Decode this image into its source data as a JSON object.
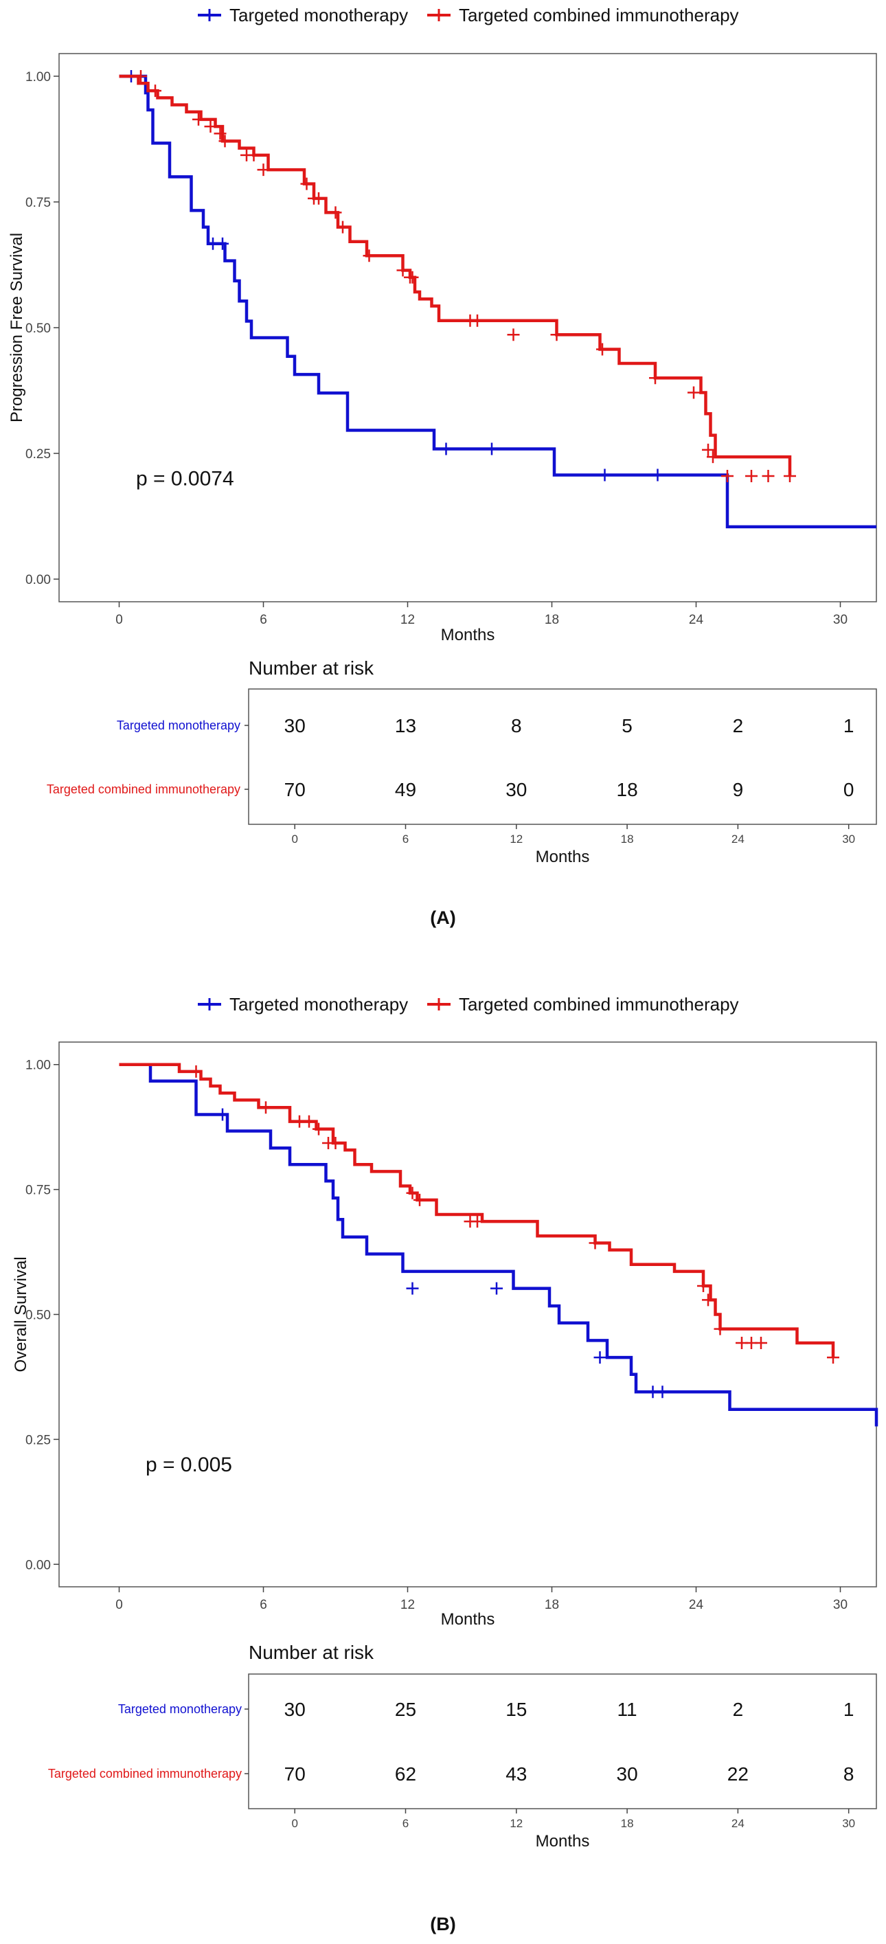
{
  "chart_data": [
    {
      "type": "line",
      "subtype": "kaplan-meier",
      "panel_label": "(A)",
      "ylabel": "Progression Free Survival",
      "xlabel": "Months",
      "xlim": [
        -2.5,
        31.5
      ],
      "ylim": [
        -0.045,
        1.045
      ],
      "x_ticks": [
        0,
        6,
        12,
        18,
        24,
        30
      ],
      "y_ticks": [
        0,
        0.25,
        0.5,
        0.75,
        1.0
      ],
      "y_tick_labels": [
        "0.00",
        "0.25",
        "0.50",
        "0.75",
        "1.00"
      ],
      "pvalue": "p = 0.0074",
      "pvalue_pos": [
        0.7,
        0.2
      ],
      "legend": [
        "Targeted monotherapy",
        "Targeted combined immunotherapy"
      ],
      "series": [
        {
          "name": "Targeted monotherapy",
          "color": "#1010d0",
          "x": [
            0,
            0.9,
            1.1,
            1.2,
            1.4,
            2.1,
            3.0,
            3.5,
            3.7,
            4.4,
            4.8,
            5.0,
            5.3,
            5.5,
            7.0,
            7.3,
            8.3,
            9.5,
            13.1,
            18.1,
            25.3,
            31.5
          ],
          "y": [
            1.0,
            1.0,
            0.967,
            0.933,
            0.867,
            0.8,
            0.733,
            0.7,
            0.667,
            0.633,
            0.593,
            0.553,
            0.513,
            0.48,
            0.443,
            0.407,
            0.37,
            0.296,
            0.259,
            0.207,
            0.104,
            0.104
          ],
          "censor_x": [
            0.5,
            3.9,
            4.3,
            13.6,
            15.5,
            20.2,
            22.4
          ],
          "censor_y": [
            1.0,
            0.667,
            0.667,
            0.259,
            0.259,
            0.207,
            0.207
          ]
        },
        {
          "name": "Targeted combined immunotherapy",
          "color": "#e01818",
          "x": [
            0,
            0.8,
            1.2,
            1.6,
            2.2,
            2.8,
            3.4,
            4.0,
            4.3,
            5.0,
            5.6,
            6.2,
            7.7,
            8.1,
            8.6,
            9.1,
            9.6,
            10.3,
            11.8,
            12.1,
            12.3,
            12.5,
            13.0,
            13.3,
            18.2,
            20.0,
            20.8,
            22.3,
            24.2,
            24.4,
            24.6,
            24.8,
            27.9
          ],
          "y": [
            1.0,
            0.986,
            0.971,
            0.957,
            0.943,
            0.929,
            0.914,
            0.9,
            0.871,
            0.857,
            0.843,
            0.814,
            0.786,
            0.757,
            0.729,
            0.7,
            0.671,
            0.643,
            0.614,
            0.6,
            0.571,
            0.557,
            0.543,
            0.514,
            0.486,
            0.457,
            0.429,
            0.4,
            0.371,
            0.329,
            0.286,
            0.243,
            0.205
          ],
          "censor_x": [
            0.9,
            1.5,
            3.3,
            3.8,
            4.2,
            4.4,
            5.3,
            5.6,
            6.0,
            7.8,
            8.1,
            8.3,
            9.0,
            9.3,
            10.4,
            11.8,
            12.1,
            12.2,
            14.6,
            14.9,
            16.4,
            18.2,
            20.1,
            22.3,
            23.9,
            24.5,
            24.7,
            25.3,
            26.3,
            27.0,
            27.9
          ],
          "censor_y": [
            1.0,
            0.971,
            0.914,
            0.9,
            0.886,
            0.871,
            0.843,
            0.843,
            0.814,
            0.786,
            0.757,
            0.757,
            0.729,
            0.7,
            0.643,
            0.614,
            0.6,
            0.6,
            0.514,
            0.514,
            0.486,
            0.486,
            0.457,
            0.4,
            0.371,
            0.257,
            0.243,
            0.205,
            0.205,
            0.205,
            0.205
          ]
        }
      ],
      "risk_table": {
        "title": "Number at risk",
        "xlabel": "Months",
        "x_ticks": [
          0,
          6,
          12,
          18,
          24,
          30
        ],
        "rows": [
          {
            "name": "Targeted monotherapy",
            "color": "#1010d0",
            "values": [
              "30",
              "13",
              "8",
              "5",
              "2",
              "1"
            ]
          },
          {
            "name": "Targeted combined immunotherapy",
            "color": "#e01818",
            "values": [
              "70",
              "49",
              "30",
              "18",
              "9",
              "0"
            ]
          }
        ]
      }
    },
    {
      "type": "line",
      "subtype": "kaplan-meier",
      "panel_label": "(B)",
      "ylabel": "Overall Survival",
      "xlabel": "Months",
      "xlim": [
        -2.5,
        31.5
      ],
      "ylim": [
        -0.045,
        1.045
      ],
      "x_ticks": [
        0,
        6,
        12,
        18,
        24,
        30
      ],
      "y_ticks": [
        0,
        0.25,
        0.5,
        0.75,
        1.0
      ],
      "y_tick_labels": [
        "0.00",
        "0.25",
        "0.50",
        "0.75",
        "1.00"
      ],
      "pvalue": "p = 0.005",
      "pvalue_pos": [
        1.1,
        0.2
      ],
      "legend": [
        "Targeted monotherapy",
        "Targeted combined immunotherapy"
      ],
      "series": [
        {
          "name": "Targeted monotherapy",
          "color": "#1010d0",
          "x": [
            0,
            1.3,
            3.2,
            4.5,
            6.3,
            7.1,
            8.6,
            8.9,
            9.1,
            9.3,
            10.3,
            11.8,
            16.4,
            17.9,
            18.3,
            19.5,
            20.3,
            21.3,
            21.5,
            25.4,
            31.5
          ],
          "y": [
            1.0,
            0.967,
            0.9,
            0.867,
            0.833,
            0.8,
            0.767,
            0.733,
            0.69,
            0.655,
            0.621,
            0.586,
            0.552,
            0.517,
            0.483,
            0.448,
            0.414,
            0.38,
            0.345,
            0.31,
            0.276
          ],
          "censor_x": [
            4.3,
            12.2,
            15.7,
            20.0,
            22.2,
            22.6
          ],
          "censor_y": [
            0.9,
            0.552,
            0.552,
            0.414,
            0.345,
            0.345
          ]
        },
        {
          "name": "Targeted combined immunotherapy",
          "color": "#e01818",
          "x": [
            0,
            2.5,
            3.4,
            3.8,
            4.2,
            4.8,
            5.8,
            7.1,
            8.2,
            8.9,
            9.4,
            9.8,
            10.5,
            11.7,
            12.1,
            12.4,
            13.2,
            15.1,
            17.4,
            19.8,
            20.4,
            21.3,
            23.1,
            24.3,
            24.6,
            24.8,
            25.0,
            28.2,
            29.7
          ],
          "y": [
            1.0,
            0.986,
            0.971,
            0.957,
            0.943,
            0.929,
            0.914,
            0.886,
            0.871,
            0.843,
            0.829,
            0.8,
            0.786,
            0.757,
            0.743,
            0.729,
            0.7,
            0.686,
            0.657,
            0.643,
            0.629,
            0.6,
            0.586,
            0.557,
            0.529,
            0.5,
            0.471,
            0.443,
            0.414
          ],
          "censor_x": [
            3.2,
            6.1,
            7.5,
            7.9,
            8.3,
            8.7,
            9.0,
            12.2,
            12.5,
            14.6,
            14.9,
            19.8,
            24.3,
            24.5,
            25.0,
            25.9,
            26.3,
            26.7,
            29.7
          ],
          "censor_y": [
            0.986,
            0.914,
            0.886,
            0.886,
            0.871,
            0.843,
            0.843,
            0.743,
            0.729,
            0.686,
            0.686,
            0.643,
            0.557,
            0.529,
            0.471,
            0.443,
            0.443,
            0.443,
            0.414
          ]
        }
      ],
      "risk_table": {
        "title": "Number at risk",
        "xlabel": "Months",
        "x_ticks": [
          0,
          6,
          12,
          18,
          24,
          30
        ],
        "rows": [
          {
            "name": "Targeted monotherapy",
            "color": "#1010d0",
            "values": [
              "30",
              "25",
              "15",
              "11",
              "2",
              "1"
            ]
          },
          {
            "name": "Targeted combined immunotherapy",
            "color": "#e01818",
            "values": [
              "70",
              "62",
              "43",
              "30",
              "22",
              "8"
            ]
          }
        ]
      }
    }
  ]
}
